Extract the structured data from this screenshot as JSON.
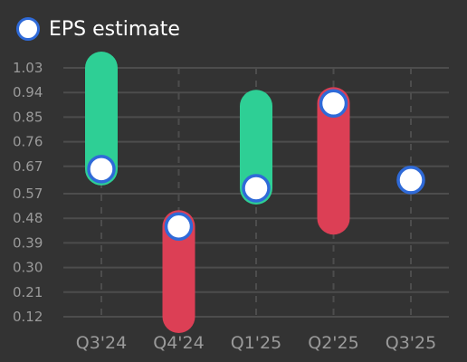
{
  "legend": {
    "label": "EPS estimate"
  },
  "colors": {
    "background": "#333333",
    "beat": "#2ecf95",
    "miss": "#dc3f55",
    "estimate_fill": "#ffffff",
    "estimate_stroke": "#2f6ad8",
    "grid": "#4d4d4d",
    "tick_text": "#9a9a9a"
  },
  "chart_data": {
    "type": "bar",
    "title": "",
    "xlabel": "",
    "ylabel": "",
    "categories": [
      "Q3'24",
      "Q4'24",
      "Q1'25",
      "Q2'25",
      "Q3'25"
    ],
    "y_ticks": [
      "0.12",
      "0.21",
      "0.30",
      "0.39",
      "0.48",
      "0.57",
      "0.67",
      "0.76",
      "0.85",
      "0.94",
      "1.03"
    ],
    "ylim": [
      0.12,
      1.03
    ],
    "grid": true,
    "legend_position": "top-left",
    "series": [
      {
        "name": "EPS estimate",
        "values": [
          0.66,
          0.45,
          0.59,
          0.9,
          0.62
        ]
      },
      {
        "values": [
          1.03,
          0.12,
          0.89,
          0.48,
          null
        ]
      }
    ]
  }
}
